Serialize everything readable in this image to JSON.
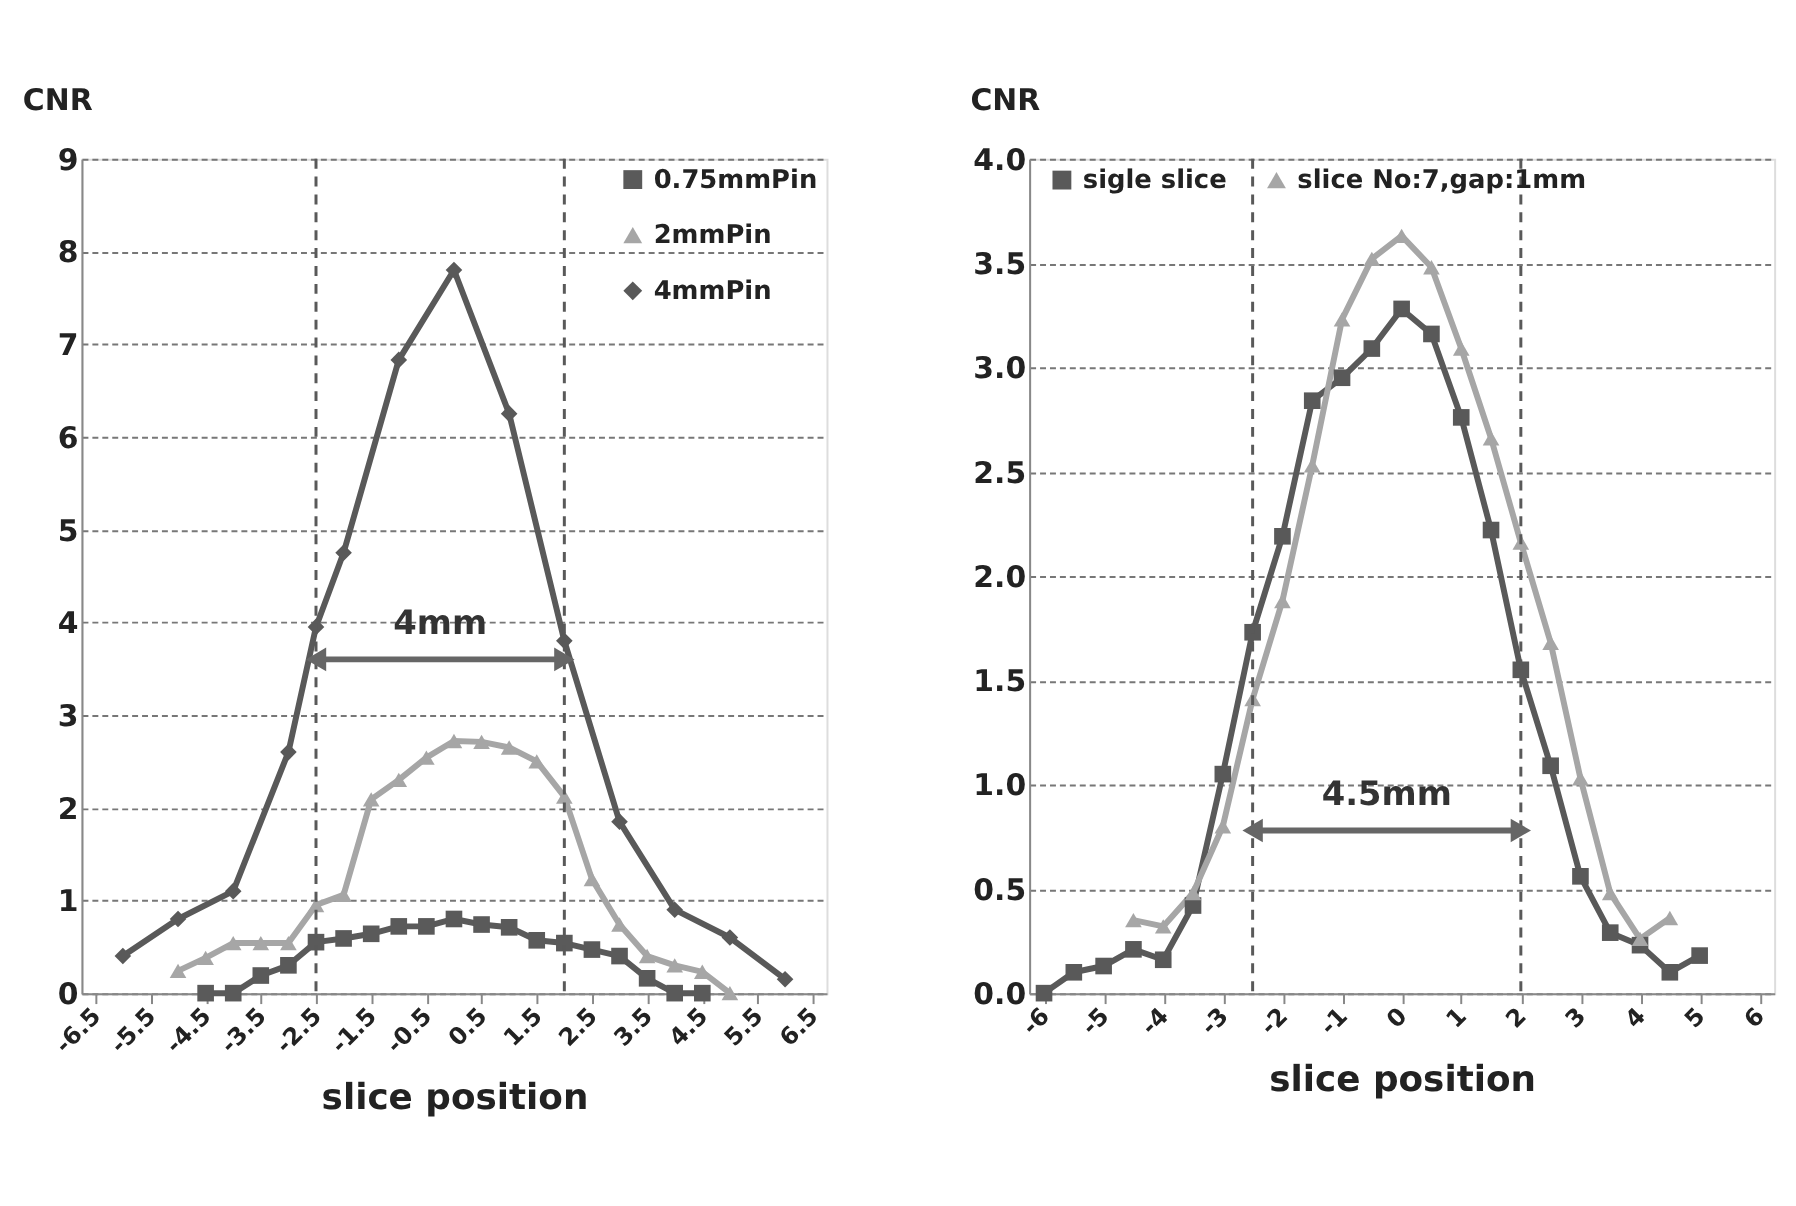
{
  "chart_data": [
    {
      "type": "line",
      "ylabel": "CNR",
      "xlabel": "slice position",
      "xlim": [
        -6.75,
        6.75
      ],
      "xticks": [
        -6.5,
        -5.5,
        -4.5,
        -3.5,
        -2.5,
        -1.5,
        -0.5,
        0.5,
        1.5,
        2.5,
        3.5,
        4.5,
        5.5,
        6.5
      ],
      "ylim": [
        0,
        9
      ],
      "yticks": [
        0,
        1,
        2,
        3,
        4,
        5,
        6,
        7,
        8,
        9
      ],
      "grid": "y",
      "legend": "top right",
      "series": [
        {
          "name": "0.75mmPin",
          "color": "#5a5a5a",
          "marker": "square",
          "x": [
            -4.5,
            -4,
            -3.5,
            -3,
            -2.5,
            -2,
            -1.5,
            -1,
            -0.5,
            0,
            0.5,
            1,
            1.5,
            2,
            2.5,
            3,
            3.5,
            4,
            4.5
          ],
          "values": [
            0,
            0,
            0.19,
            0.3,
            0.55,
            0.59,
            0.64,
            0.72,
            0.72,
            0.8,
            0.74,
            0.71,
            0.57,
            0.54,
            0.47,
            0.4,
            0.16,
            0,
            0
          ]
        },
        {
          "name": "2mmPin",
          "color": "#a6a6a6",
          "marker": "triangle",
          "x": [
            -5,
            -4.5,
            -4,
            -3.5,
            -3,
            -2.5,
            -2,
            -1.5,
            -1,
            -0.5,
            0,
            0.5,
            1,
            1.5,
            2,
            2.5,
            3,
            3.5,
            4,
            4.5,
            5
          ],
          "values": [
            0.24,
            0.38,
            0.54,
            0.54,
            0.54,
            0.95,
            1.06,
            2.09,
            2.3,
            2.54,
            2.72,
            2.71,
            2.65,
            2.5,
            2.12,
            1.23,
            0.74,
            0.4,
            0.3,
            0.23,
            0
          ]
        },
        {
          "name": "4mmPin",
          "color": "#595959",
          "marker": "diamond",
          "x": [
            -6,
            -5,
            -4,
            -3,
            -2.5,
            -2,
            -1,
            0,
            1,
            2,
            3,
            4,
            5,
            6
          ],
          "values": [
            0.4,
            0.8,
            1.1,
            2.6,
            3.95,
            4.75,
            6.83,
            7.8,
            6.25,
            3.8,
            1.85,
            0.9,
            0.6,
            0.15
          ]
        }
      ],
      "ref_lines": [
        {
          "axis": "x",
          "value": -2.5,
          "color": "#595959",
          "line_style": "dashed"
        },
        {
          "axis": "x",
          "value": 2,
          "color": "#595959",
          "line_style": "dashed"
        }
      ],
      "annotations": [
        "4mm"
      ]
    },
    {
      "type": "line",
      "ylabel": "CNR",
      "xlabel": "slice position",
      "xlim": [
        -6.25,
        6.25
      ],
      "xticks": [
        -6,
        -5,
        -4,
        -3,
        -2,
        -1,
        0,
        1,
        2,
        3,
        4,
        5,
        6
      ],
      "ylim": [
        0,
        4
      ],
      "yticks": [
        {
          "value": 0,
          "label": "0.0"
        },
        0.5,
        {
          "value": 1,
          "label": "1.0"
        },
        1.5,
        {
          "value": 2,
          "label": "2.0"
        },
        2.5,
        {
          "value": 3,
          "label": "3.0"
        },
        3.5,
        {
          "value": 4,
          "label": "4.0"
        }
      ],
      "grid": "y",
      "legend": "top",
      "series": [
        {
          "name": "sigle slice",
          "color": "#595959",
          "marker": "square",
          "x": [
            -6,
            -5.5,
            -5,
            -4.5,
            -4,
            -3.5,
            -3,
            -2.5,
            -2,
            -1.5,
            -1,
            -0.5,
            0,
            0.5,
            1,
            1.5,
            2,
            2.5,
            3,
            3.5,
            4,
            4.5,
            5
          ],
          "values": [
            0,
            0.1,
            0.13,
            0.21,
            0.16,
            0.42,
            1.05,
            1.73,
            2.19,
            2.84,
            2.95,
            3.09,
            3.28,
            3.16,
            2.76,
            2.22,
            1.55,
            1.09,
            0.56,
            0.29,
            0.23,
            0.1,
            0.18
          ]
        },
        {
          "name": "slice No:7,gap:1mm",
          "color": "#a6a6a6",
          "marker": "triangle",
          "x": [
            -4.5,
            -4,
            -3.5,
            -3,
            -2.5,
            -2,
            -1.5,
            -1,
            -0.5,
            0,
            0.5,
            1,
            1.5,
            2,
            2.5,
            3,
            3.5,
            4,
            4.5
          ],
          "values": [
            0.35,
            0.32,
            0.48,
            0.8,
            1.41,
            1.88,
            2.53,
            3.23,
            3.52,
            3.63,
            3.48,
            3.09,
            2.66,
            2.16,
            1.68,
            1.03,
            0.48,
            0.26,
            0.36
          ]
        }
      ],
      "ref_lines": [
        {
          "axis": "x",
          "value": -2.5,
          "color": "#595959",
          "line_style": "dashed"
        },
        {
          "axis": "x",
          "value": 2,
          "color": "#595959",
          "line_style": "dashed"
        }
      ],
      "annotations": [
        "4.5mm"
      ]
    }
  ]
}
